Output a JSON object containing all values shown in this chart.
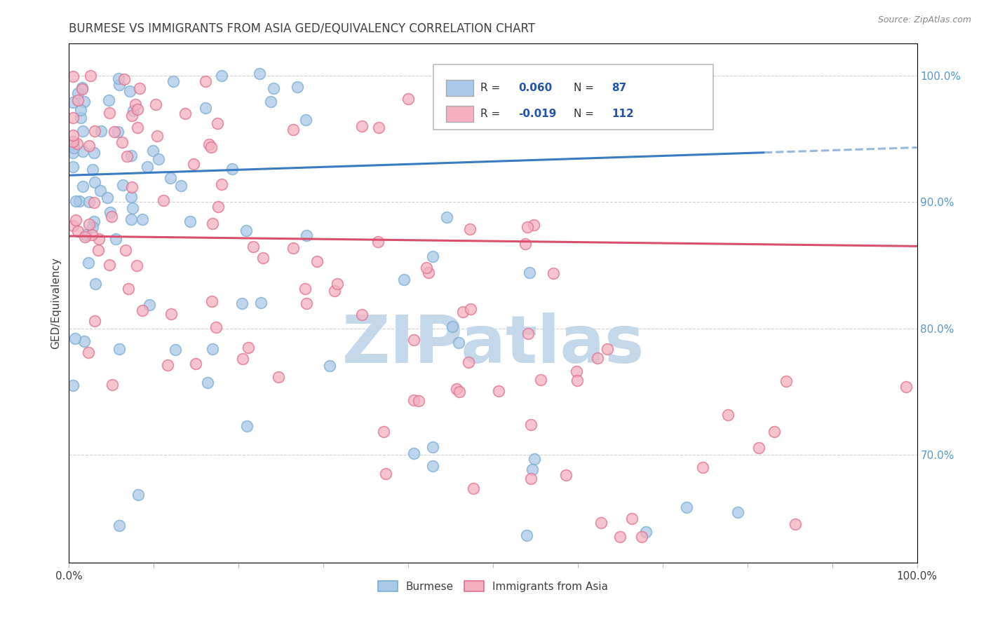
{
  "title": "BURMESE VS IMMIGRANTS FROM ASIA GED/EQUIVALENCY CORRELATION CHART",
  "source": "Source: ZipAtlas.com",
  "ylabel": "GED/Equivalency",
  "ytick_labels": [
    "100.0%",
    "90.0%",
    "80.0%",
    "70.0%"
  ],
  "ytick_positions": [
    1.0,
    0.9,
    0.8,
    0.7
  ],
  "xlim": [
    0.0,
    1.0
  ],
  "ylim": [
    0.615,
    1.025
  ],
  "blue_line_color": "#3a7cc1",
  "blue_dash_color": "#9ab8d8",
  "pink_line_color": "#d94f6e",
  "blue_dot_facecolor": "#aac8e8",
  "blue_dot_edgecolor": "#7aaed0",
  "pink_dot_facecolor": "#f4b0c0",
  "pink_dot_edgecolor": "#e07090",
  "bg_color": "#ffffff",
  "grid_color": "#cccccc",
  "watermark_text": "ZIPatlas",
  "watermark_color": "#c5d8ea",
  "title_color": "#404040",
  "title_fontsize": 12,
  "source_fontsize": 9,
  "ytick_color": "#5599cc",
  "xtick_color": "#404040",
  "ylabel_color": "#404040",
  "legend_R1": "0.060",
  "legend_N1": "87",
  "legend_R2": "-0.019",
  "legend_N2": "112",
  "legend_value_color": "#2255aa",
  "legend_label_color": "#333333",
  "dot_size": 130,
  "blue_line_start_y": 0.921,
  "blue_line_end_solid_x": 0.82,
  "blue_line_end_x": 1.0,
  "blue_line_slope": 0.022,
  "pink_line_start_y": 0.873,
  "pink_line_slope": -0.008
}
